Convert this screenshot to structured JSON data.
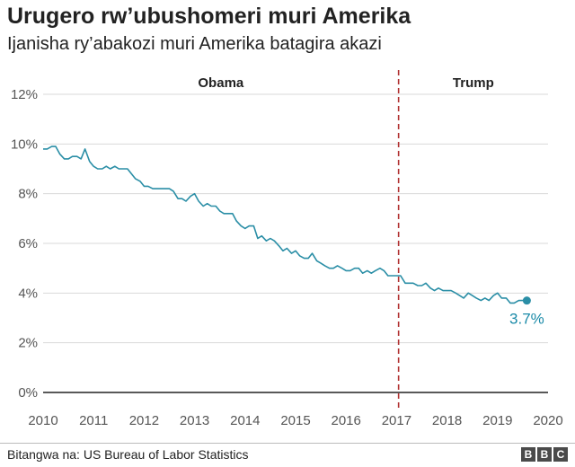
{
  "header": {
    "title": "Urugero rw’ubushomeri muri Amerika",
    "subtitle": "Ijanisha ry’abakozi muri Amerika batagira akazi"
  },
  "footer": {
    "source": "Bitangwa na: US Bureau of Labor Statistics",
    "logo_letters": [
      "B",
      "B",
      "C"
    ]
  },
  "colors": {
    "line": "#2a8ea6",
    "end_label": "#1a8aa8",
    "divider": "#b03030",
    "baseline": "#222222",
    "grid": "#d9d9d9"
  },
  "chart_data": {
    "type": "line",
    "title": "Urugero rw’ubushomeri muri Amerika",
    "subtitle": "Ijanisha ry’abakozi muri Amerika batagira akazi",
    "xlim": [
      2010,
      2020
    ],
    "ylim": [
      0,
      12
    ],
    "x_ticks": [
      "2010",
      "2011",
      "2012",
      "2013",
      "2014",
      "2015",
      "2016",
      "2017",
      "2018",
      "2019",
      "2020"
    ],
    "y_ticks": [
      "0%",
      "2%",
      "4%",
      "6%",
      "8%",
      "10%",
      "12%"
    ],
    "grid": true,
    "periods": [
      {
        "label": "Obama",
        "start": 2010,
        "end": 2017.04
      },
      {
        "label": "Trump",
        "start": 2017.04,
        "end": 2020
      }
    ],
    "divider_x": 2017.04,
    "end_label": "3.7%",
    "series": [
      {
        "values": [
          [
            2010.0,
            9.8
          ],
          [
            2010.08,
            9.8
          ],
          [
            2010.17,
            9.9
          ],
          [
            2010.25,
            9.9
          ],
          [
            2010.33,
            9.6
          ],
          [
            2010.42,
            9.4
          ],
          [
            2010.5,
            9.4
          ],
          [
            2010.58,
            9.5
          ],
          [
            2010.67,
            9.5
          ],
          [
            2010.75,
            9.4
          ],
          [
            2010.83,
            9.8
          ],
          [
            2010.92,
            9.3
          ],
          [
            2011.0,
            9.1
          ],
          [
            2011.08,
            9.0
          ],
          [
            2011.17,
            9.0
          ],
          [
            2011.25,
            9.1
          ],
          [
            2011.33,
            9.0
          ],
          [
            2011.42,
            9.1
          ],
          [
            2011.5,
            9.0
          ],
          [
            2011.58,
            9.0
          ],
          [
            2011.67,
            9.0
          ],
          [
            2011.75,
            8.8
          ],
          [
            2011.83,
            8.6
          ],
          [
            2011.92,
            8.5
          ],
          [
            2012.0,
            8.3
          ],
          [
            2012.08,
            8.3
          ],
          [
            2012.17,
            8.2
          ],
          [
            2012.25,
            8.2
          ],
          [
            2012.33,
            8.2
          ],
          [
            2012.42,
            8.2
          ],
          [
            2012.5,
            8.2
          ],
          [
            2012.58,
            8.1
          ],
          [
            2012.67,
            7.8
          ],
          [
            2012.75,
            7.8
          ],
          [
            2012.83,
            7.7
          ],
          [
            2012.92,
            7.9
          ],
          [
            2013.0,
            8.0
          ],
          [
            2013.08,
            7.7
          ],
          [
            2013.17,
            7.5
          ],
          [
            2013.25,
            7.6
          ],
          [
            2013.33,
            7.5
          ],
          [
            2013.42,
            7.5
          ],
          [
            2013.5,
            7.3
          ],
          [
            2013.58,
            7.2
          ],
          [
            2013.67,
            7.2
          ],
          [
            2013.75,
            7.2
          ],
          [
            2013.83,
            6.9
          ],
          [
            2013.92,
            6.7
          ],
          [
            2014.0,
            6.6
          ],
          [
            2014.08,
            6.7
          ],
          [
            2014.17,
            6.7
          ],
          [
            2014.25,
            6.2
          ],
          [
            2014.33,
            6.3
          ],
          [
            2014.42,
            6.1
          ],
          [
            2014.5,
            6.2
          ],
          [
            2014.58,
            6.1
          ],
          [
            2014.67,
            5.9
          ],
          [
            2014.75,
            5.7
          ],
          [
            2014.83,
            5.8
          ],
          [
            2014.92,
            5.6
          ],
          [
            2015.0,
            5.7
          ],
          [
            2015.08,
            5.5
          ],
          [
            2015.17,
            5.4
          ],
          [
            2015.25,
            5.4
          ],
          [
            2015.33,
            5.6
          ],
          [
            2015.42,
            5.3
          ],
          [
            2015.5,
            5.2
          ],
          [
            2015.58,
            5.1
          ],
          [
            2015.67,
            5.0
          ],
          [
            2015.75,
            5.0
          ],
          [
            2015.83,
            5.1
          ],
          [
            2015.92,
            5.0
          ],
          [
            2016.0,
            4.9
          ],
          [
            2016.08,
            4.9
          ],
          [
            2016.17,
            5.0
          ],
          [
            2016.25,
            5.0
          ],
          [
            2016.33,
            4.8
          ],
          [
            2016.42,
            4.9
          ],
          [
            2016.5,
            4.8
          ],
          [
            2016.58,
            4.9
          ],
          [
            2016.67,
            5.0
          ],
          [
            2016.75,
            4.9
          ],
          [
            2016.83,
            4.7
          ],
          [
            2016.92,
            4.7
          ],
          [
            2017.0,
            4.7
          ],
          [
            2017.08,
            4.7
          ],
          [
            2017.17,
            4.4
          ],
          [
            2017.25,
            4.4
          ],
          [
            2017.33,
            4.4
          ],
          [
            2017.42,
            4.3
          ],
          [
            2017.5,
            4.3
          ],
          [
            2017.58,
            4.4
          ],
          [
            2017.67,
            4.2
          ],
          [
            2017.75,
            4.1
          ],
          [
            2017.83,
            4.2
          ],
          [
            2017.92,
            4.1
          ],
          [
            2018.0,
            4.1
          ],
          [
            2018.08,
            4.1
          ],
          [
            2018.17,
            4.0
          ],
          [
            2018.25,
            3.9
          ],
          [
            2018.33,
            3.8
          ],
          [
            2018.42,
            4.0
          ],
          [
            2018.5,
            3.9
          ],
          [
            2018.58,
            3.8
          ],
          [
            2018.67,
            3.7
          ],
          [
            2018.75,
            3.8
          ],
          [
            2018.83,
            3.7
          ],
          [
            2018.92,
            3.9
          ],
          [
            2019.0,
            4.0
          ],
          [
            2019.08,
            3.8
          ],
          [
            2019.17,
            3.8
          ],
          [
            2019.25,
            3.6
          ],
          [
            2019.33,
            3.6
          ],
          [
            2019.42,
            3.7
          ],
          [
            2019.5,
            3.7
          ],
          [
            2019.58,
            3.7
          ]
        ]
      }
    ]
  }
}
